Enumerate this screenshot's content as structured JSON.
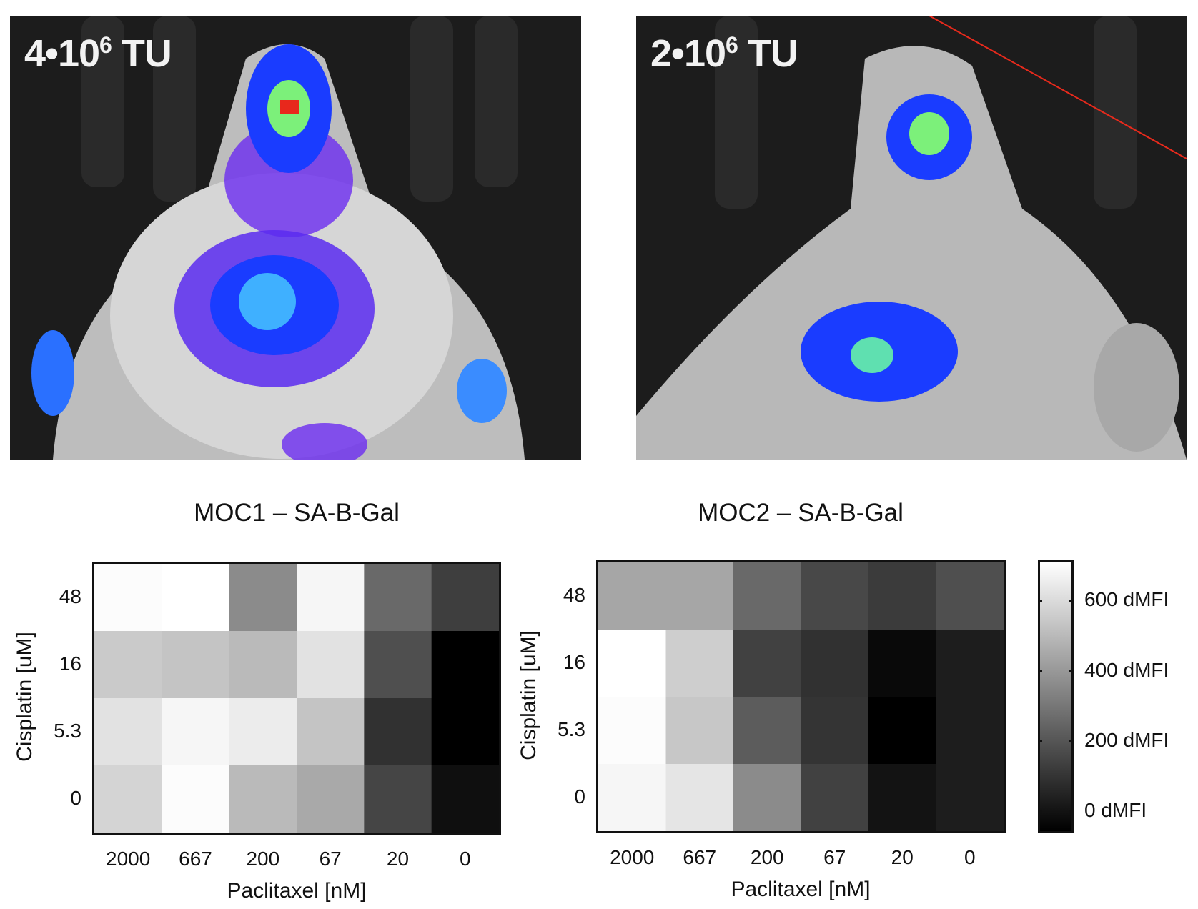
{
  "photos": [
    {
      "label_base": "4•10",
      "label_exp": "6",
      "label_unit": " TU"
    },
    {
      "label_base": "2•10",
      "label_exp": "6",
      "label_unit": " TU"
    }
  ],
  "chart_data": [
    {
      "type": "heatmap",
      "title": "MOC1 – SA-B-Gal",
      "xlabel": "Paclitaxel [nM]",
      "ylabel": "Cisplatin [uM]",
      "x_categories": [
        "2000",
        "667",
        "200",
        "67",
        "20",
        "0"
      ],
      "y_categories": [
        "48",
        "16",
        "5.3",
        "0"
      ],
      "values": [
        [
          700,
          710,
          360,
          680,
          260,
          130
        ],
        [
          550,
          530,
          500,
          620,
          180,
          -56
        ],
        [
          620,
          680,
          650,
          530,
          90,
          -56
        ],
        [
          580,
          700,
          500,
          450,
          150,
          -10
        ]
      ],
      "colormap": "grayscale (black low, white high)"
    },
    {
      "type": "heatmap",
      "title": "MOC2 – SA-B-Gal",
      "xlabel": "Paclitaxel [nM]",
      "ylabel": "Cisplatin [uM]",
      "x_categories": [
        "2000",
        "667",
        "200",
        "67",
        "20",
        "0"
      ],
      "y_categories": [
        "48",
        "16",
        "5.3",
        "0"
      ],
      "values": [
        [
          440,
          440,
          260,
          160,
          120,
          180
        ],
        [
          710,
          560,
          140,
          90,
          -30,
          30
        ],
        [
          700,
          540,
          220,
          100,
          -56,
          30
        ],
        [
          680,
          630,
          360,
          140,
          0,
          30
        ]
      ],
      "colormap": "grayscale (black low, white high)"
    }
  ],
  "colorbar": {
    "range": [
      -56,
      708
    ],
    "ticks": [
      {
        "value": 600,
        "label": "600 dMFI"
      },
      {
        "value": 400,
        "label": "400 dMFI"
      },
      {
        "value": 200,
        "label": "200 dMFI"
      },
      {
        "value": 0,
        "label": "0 dMFI"
      }
    ]
  }
}
